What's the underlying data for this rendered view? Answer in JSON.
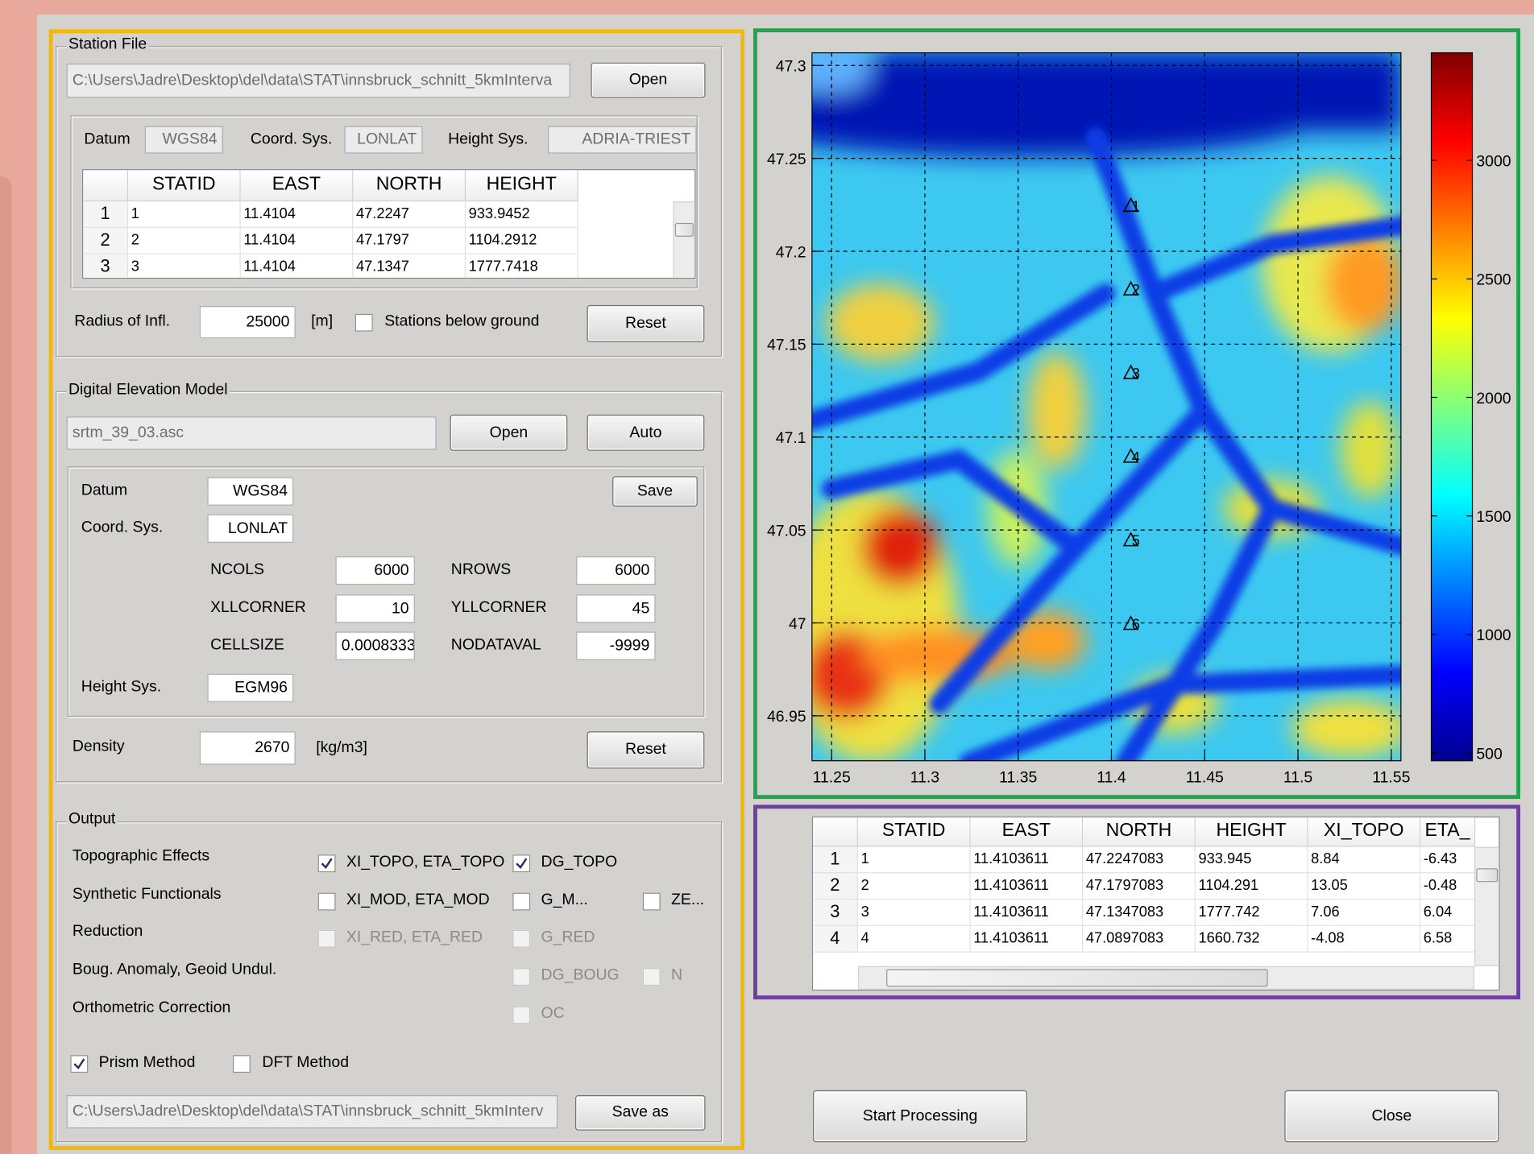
{
  "station_file": {
    "title": "Station File",
    "path": "C:\\Users\\Jadre\\Desktop\\del\\data\\STAT\\innsbruck_schnitt_5kmInterva",
    "open_button": "Open",
    "datum_label": "Datum",
    "datum": "WGS84",
    "coord_sys_label": "Coord. Sys.",
    "coord_sys": "LONLAT",
    "height_sys_label": "Height Sys.",
    "height_sys": "ADRIA-TRIEST",
    "table": {
      "headers": [
        "STATID",
        "EAST",
        "NORTH",
        "HEIGHT"
      ],
      "rows": [
        [
          "1",
          "1",
          "11.4104",
          "47.2247",
          "933.9452"
        ],
        [
          "2",
          "2",
          "11.4104",
          "47.1797",
          "1104.2912"
        ],
        [
          "3",
          "3",
          "11.4104",
          "47.1347",
          "1777.7418"
        ]
      ]
    },
    "radius_label": "Radius of Infl.",
    "radius": "25000",
    "radius_unit": "[m]",
    "below_ground": {
      "label": "Stations below ground",
      "checked": false
    },
    "reset_button": "Reset"
  },
  "dem": {
    "title": "Digital Elevation Model",
    "file": "srtm_39_03.asc",
    "open_button": "Open",
    "auto_button": "Auto",
    "datum_label": "Datum",
    "datum": "WGS84",
    "save_button": "Save",
    "coord_sys_label": "Coord. Sys.",
    "coord_sys": "LONLAT",
    "params": [
      {
        "label": "NCOLS",
        "value": "6000"
      },
      {
        "label": "NROWS",
        "value": "6000"
      },
      {
        "label": "XLLCORNER",
        "value": "10"
      },
      {
        "label": "YLLCORNER",
        "value": "45"
      },
      {
        "label": "CELLSIZE",
        "value": "0.0008333"
      },
      {
        "label": "NODATAVAL",
        "value": "-9999"
      }
    ],
    "height_sys_label": "Height Sys.",
    "height_sys": "EGM96",
    "density_label": "Density",
    "density": "2670",
    "density_unit": "[kg/m3]",
    "reset_button": "Reset"
  },
  "output": {
    "title": "Output",
    "rows": [
      {
        "label": "Topographic Effects",
        "options": [
          {
            "label": "XI_TOPO, ETA_TOPO",
            "checked": true,
            "enabled": true
          },
          {
            "label": "DG_TOPO",
            "checked": true,
            "enabled": true
          }
        ]
      },
      {
        "label": "Synthetic Functionals",
        "options": [
          {
            "label": "XI_MOD, ETA_MOD",
            "checked": false,
            "enabled": true
          },
          {
            "label": "G_M...",
            "checked": false,
            "enabled": true
          },
          {
            "label": "ZE...",
            "checked": false,
            "enabled": true
          }
        ]
      },
      {
        "label": "Reduction",
        "options": [
          {
            "label": "XI_RED, ETA_RED",
            "checked": false,
            "enabled": false
          },
          {
            "label": "G_RED",
            "checked": false,
            "enabled": false
          }
        ]
      },
      {
        "label": "Boug. Anomaly, Geoid Undul.",
        "options": [
          {
            "label": "DG_BOUG",
            "checked": false,
            "enabled": false
          },
          {
            "label": "N",
            "checked": false,
            "enabled": false
          }
        ]
      },
      {
        "label": "Orthometric Correction",
        "options": [
          {
            "label": "OC",
            "checked": false,
            "enabled": false
          }
        ]
      }
    ],
    "prism": {
      "label": "Prism Method",
      "checked": true
    },
    "dft": {
      "label": "DFT Method",
      "checked": false
    },
    "path": "C:\\Users\\Jadre\\Desktop\\del\\data\\STAT\\innsbruck_schnitt_5kmInterv",
    "save_button": "Save as"
  },
  "map": {
    "xlim": [
      11.2395,
      11.5552
    ],
    "ylim": [
      46.9258,
      47.3068
    ],
    "xticks": [
      11.25,
      11.3,
      11.35,
      11.4,
      11.45,
      11.5,
      11.55
    ],
    "yticks": [
      46.95,
      47,
      47.05,
      47.1,
      47.15,
      47.2,
      47.25,
      47.3
    ],
    "grid": true,
    "colorbar": {
      "lim": [
        467,
        3454
      ],
      "ticks": [
        500,
        1000,
        1500,
        2000,
        2500,
        3000
      ]
    },
    "stations": {
      "labels": [
        "1",
        "2",
        "3",
        "4",
        "5",
        "6"
      ],
      "x": [
        11.4104,
        11.4104,
        11.4104,
        11.4104,
        11.4104,
        11.4104
      ],
      "y": [
        47.2247,
        47.1797,
        47.1347,
        47.0897,
        47.0447,
        46.9997
      ]
    }
  },
  "results": {
    "headers": [
      "STATID",
      "EAST",
      "NORTH",
      "HEIGHT",
      "XI_TOPO",
      "ETA_"
    ],
    "rows": [
      [
        "1",
        "1",
        "11.4103611",
        "47.2247083",
        "933.945",
        "8.84",
        "-6.43"
      ],
      [
        "2",
        "2",
        "11.4103611",
        "47.1797083",
        "1104.291",
        "13.05",
        "-0.48"
      ],
      [
        "3",
        "3",
        "11.4103611",
        "47.1347083",
        "1777.742",
        "7.06",
        "6.04"
      ],
      [
        "4",
        "4",
        "11.4103611",
        "47.0897083",
        "1660.732",
        "-4.08",
        "6.58"
      ]
    ]
  },
  "start_button": "Start Processing",
  "close_button": "Close"
}
